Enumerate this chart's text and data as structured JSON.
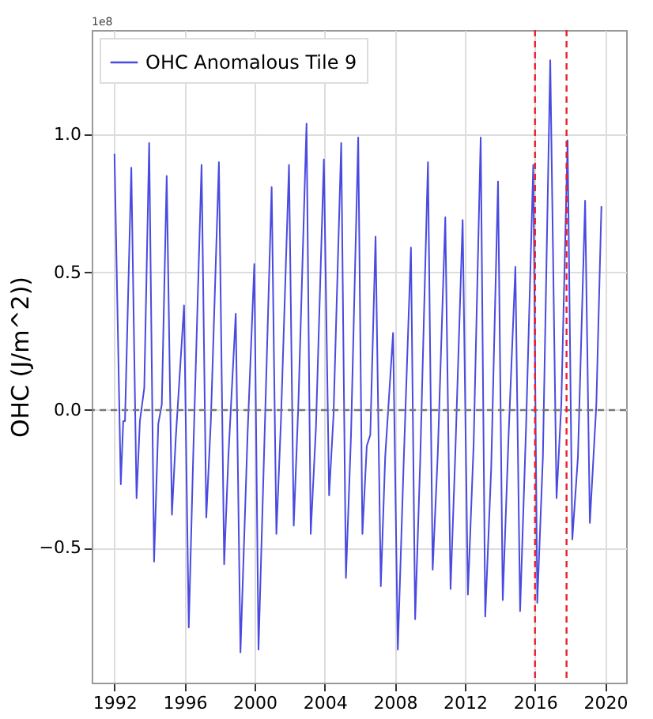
{
  "chart_data": {
    "type": "line",
    "ylabel": "OHC (J/m^2))",
    "annotations": [
      "1e8"
    ],
    "xlim": [
      1990.7,
      2021.2
    ],
    "xticks": [
      1992,
      1996,
      2000,
      2004,
      2008,
      2012,
      2016,
      2020
    ],
    "ylim": [
      -0.99,
      1.38
    ],
    "yticks": [
      {
        "value": -0.5,
        "label": "−0.5"
      },
      {
        "value": 0,
        "label": "0.0"
      },
      {
        "value": 0.5,
        "label": "0.5"
      },
      {
        "value": 1.0,
        "label": "1.0"
      }
    ],
    "grid": true,
    "legend": "top left",
    "line_style": "solid",
    "marker": "none",
    "series": [
      {
        "name": "OHC Anomalous Tile 9",
        "color": "#4a4ae0",
        "x": [
          1992.0,
          1992.36,
          1992.5,
          1992.6,
          1992.96,
          1993.26,
          1993.45,
          1993.7,
          1993.98,
          1994.26,
          1994.5,
          1994.7,
          1994.98,
          1995.28,
          1995.5,
          1995.97,
          1996.24,
          1996.5,
          1996.97,
          1997.24,
          1997.5,
          1997.96,
          1998.26,
          1998.5,
          1998.92,
          1999.19,
          1999.6,
          1999.98,
          2000.22,
          2000.55,
          2000.97,
          2001.24,
          2001.5,
          2001.96,
          2002.23,
          2002.5,
          2002.96,
          2003.2,
          2003.5,
          2003.95,
          2004.25,
          2004.5,
          2004.94,
          2005.21,
          2005.5,
          2005.91,
          2006.15,
          2006.4,
          2006.6,
          2006.9,
          2007.2,
          2007.45,
          2007.9,
          2008.17,
          2008.5,
          2008.92,
          2009.16,
          2009.45,
          2009.89,
          2010.16,
          2010.45,
          2010.88,
          2011.18,
          2011.45,
          2011.87,
          2012.17,
          2012.5,
          2012.9,
          2013.16,
          2013.5,
          2013.89,
          2014.16,
          2014.5,
          2014.88,
          2015.15,
          2015.5,
          2015.9,
          2016.13,
          2016.45,
          2016.87,
          2017.23,
          2017.5,
          2017.86,
          2018.13,
          2018.45,
          2018.86,
          2019.13,
          2019.5,
          2019.79
        ],
        "values": [
          0.93,
          -0.27,
          -0.04,
          -0.04,
          0.88,
          -0.32,
          -0.04,
          0.08,
          0.97,
          -0.55,
          -0.05,
          0.02,
          0.85,
          -0.38,
          -0.1,
          0.38,
          -0.79,
          -0.15,
          0.89,
          -0.39,
          -0.04,
          0.9,
          -0.56,
          -0.17,
          0.35,
          -0.88,
          -0.08,
          0.53,
          -0.87,
          -0.13,
          0.81,
          -0.45,
          -0.04,
          0.89,
          -0.42,
          0.03,
          1.04,
          -0.45,
          -0.06,
          0.91,
          -0.31,
          -0.02,
          0.97,
          -0.61,
          -0.09,
          0.99,
          -0.45,
          -0.13,
          -0.09,
          0.63,
          -0.64,
          -0.17,
          0.28,
          -0.87,
          -0.2,
          0.59,
          -0.76,
          -0.18,
          0.9,
          -0.58,
          -0.16,
          0.7,
          -0.65,
          -0.16,
          0.69,
          -0.67,
          -0.12,
          0.99,
          -0.75,
          -0.21,
          0.83,
          -0.69,
          -0.08,
          0.52,
          -0.73,
          -0.04,
          0.89,
          -0.7,
          -0.17,
          1.27,
          -0.32,
          0.02,
          0.98,
          -0.47,
          -0.17,
          0.76,
          -0.41,
          0.02,
          0.74
        ]
      }
    ],
    "ref_lines": [
      {
        "axis": "y",
        "value": 0,
        "color": "#777777",
        "line_style": "dashed"
      },
      {
        "axis": "x",
        "value": 2016.0,
        "color": "#e8202a",
        "line_style": "dashed"
      },
      {
        "axis": "x",
        "value": 2017.8,
        "color": "#e8202a",
        "line_style": "dashed"
      }
    ]
  }
}
